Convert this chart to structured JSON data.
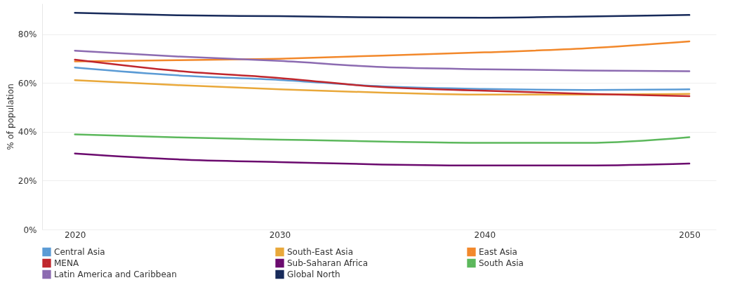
{
  "chart_data": {
    "type": "line",
    "ylabel": "% of population",
    "x": [
      2020,
      2025,
      2030,
      2035,
      2040,
      2045,
      2050
    ],
    "series": [
      {
        "name": "Central Asia",
        "color": "#5b9bd5",
        "values": [
          66.3,
          63.1,
          61.2,
          58.6,
          57.5,
          57.1,
          57.4
        ]
      },
      {
        "name": "South-East Asia",
        "color": "#e9a83a",
        "values": [
          61.1,
          59.1,
          57.4,
          56.0,
          55.2,
          55.2,
          55.5
        ]
      },
      {
        "name": "East Asia",
        "color": "#f2882b",
        "values": [
          68.8,
          69.3,
          69.9,
          71.2,
          72.5,
          74.2,
          77.0
        ]
      },
      {
        "name": "MENA",
        "color": "#c0272d",
        "values": [
          69.5,
          64.9,
          62.0,
          58.3,
          56.8,
          55.5,
          54.6
        ]
      },
      {
        "name": "Sub-Saharan Africa",
        "color": "#6b0a6e",
        "values": [
          31.1,
          28.7,
          27.6,
          26.6,
          26.2,
          26.2,
          27.0
        ]
      },
      {
        "name": "South Asia",
        "color": "#5cb85c",
        "values": [
          38.9,
          37.7,
          36.8,
          36.0,
          35.5,
          35.5,
          37.8
        ]
      },
      {
        "name": "Latin America and Caribbean",
        "color": "#8c6bb1",
        "values": [
          73.2,
          70.8,
          69.0,
          66.5,
          65.6,
          65.1,
          64.8
        ]
      },
      {
        "name": "Global North",
        "color": "#172a5a",
        "values": [
          88.7,
          87.7,
          87.3,
          86.8,
          86.7,
          87.2,
          87.8
        ]
      }
    ],
    "xlim": [
      2018.4,
      2051.3
    ],
    "xticks": [
      2020,
      2030,
      2040,
      2050
    ],
    "ylim": [
      0,
      92.5
    ],
    "yticks": [
      {
        "value": 0,
        "label": "0%"
      },
      {
        "value": 20,
        "label": "20%"
      },
      {
        "value": 40,
        "label": "40%"
      },
      {
        "value": 60,
        "label": "60%"
      },
      {
        "value": 80,
        "label": "80%"
      }
    ],
    "grid": "y",
    "legend": "bottom",
    "marker": "none",
    "line_style": "solid"
  }
}
